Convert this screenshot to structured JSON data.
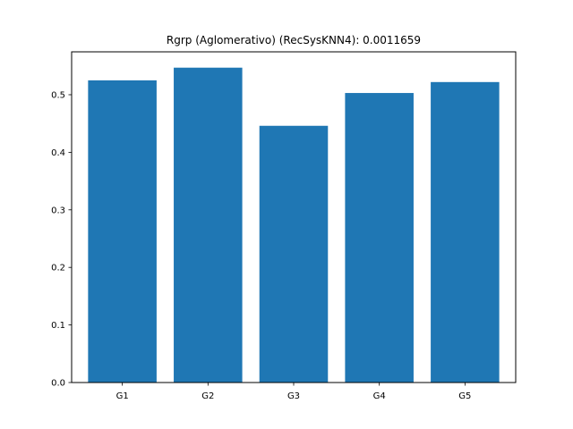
{
  "chart_data": {
    "type": "bar",
    "title": "Rgrp (Aglomerativo) (RecSysKNN4): 0.0011659",
    "xlabel": "",
    "ylabel": "",
    "categories": [
      "G1",
      "G2",
      "G3",
      "G4",
      "G5"
    ],
    "values": [
      0.525,
      0.547,
      0.446,
      0.503,
      0.522
    ],
    "ylim": [
      0,
      0.5745
    ],
    "yticks": [
      0.0,
      0.1,
      0.2,
      0.3,
      0.4,
      0.5
    ],
    "ytick_labels": [
      "0.0",
      "0.1",
      "0.2",
      "0.3",
      "0.4",
      "0.5"
    ],
    "grid": false,
    "bar_color": "#1f77b4"
  }
}
